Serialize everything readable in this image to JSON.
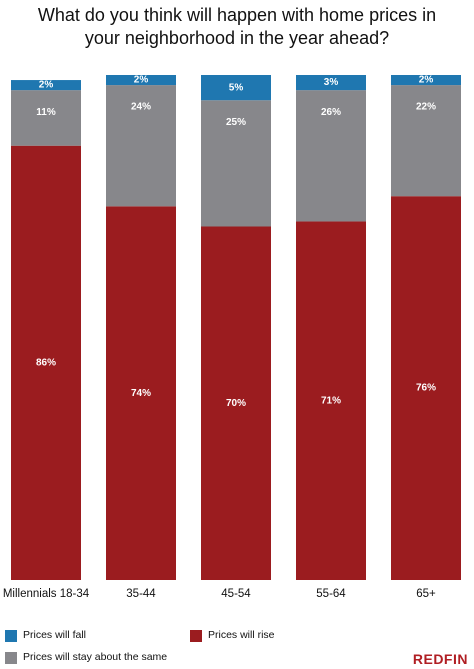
{
  "chart_data": {
    "type": "stacked_bar",
    "title": "What do you think will happen with home prices in your neighborhood in the year ahead?",
    "categories": [
      "Millennials 18-34",
      "35-44",
      "45-54",
      "55-64",
      "65+"
    ],
    "series": [
      {
        "name": "Prices will rise",
        "color": "#9b1c1f",
        "values": [
          86,
          74,
          70,
          71,
          76
        ],
        "value_labels": [
          "86%",
          "74%",
          "70%",
          "71%",
          "76%"
        ]
      },
      {
        "name": "Prices will stay about the same",
        "color": "#87878b",
        "values": [
          11,
          24,
          25,
          26,
          22
        ],
        "value_labels": [
          "11%",
          "24%",
          "25%",
          "26%",
          "22%"
        ]
      },
      {
        "name": "Prices will fall",
        "color": "#1f77b0",
        "values": [
          2,
          2,
          5,
          3,
          2
        ],
        "value_labels": [
          "2%",
          "2%",
          "5%",
          "3%",
          "2%"
        ]
      }
    ],
    "brand": "REDFIN"
  }
}
